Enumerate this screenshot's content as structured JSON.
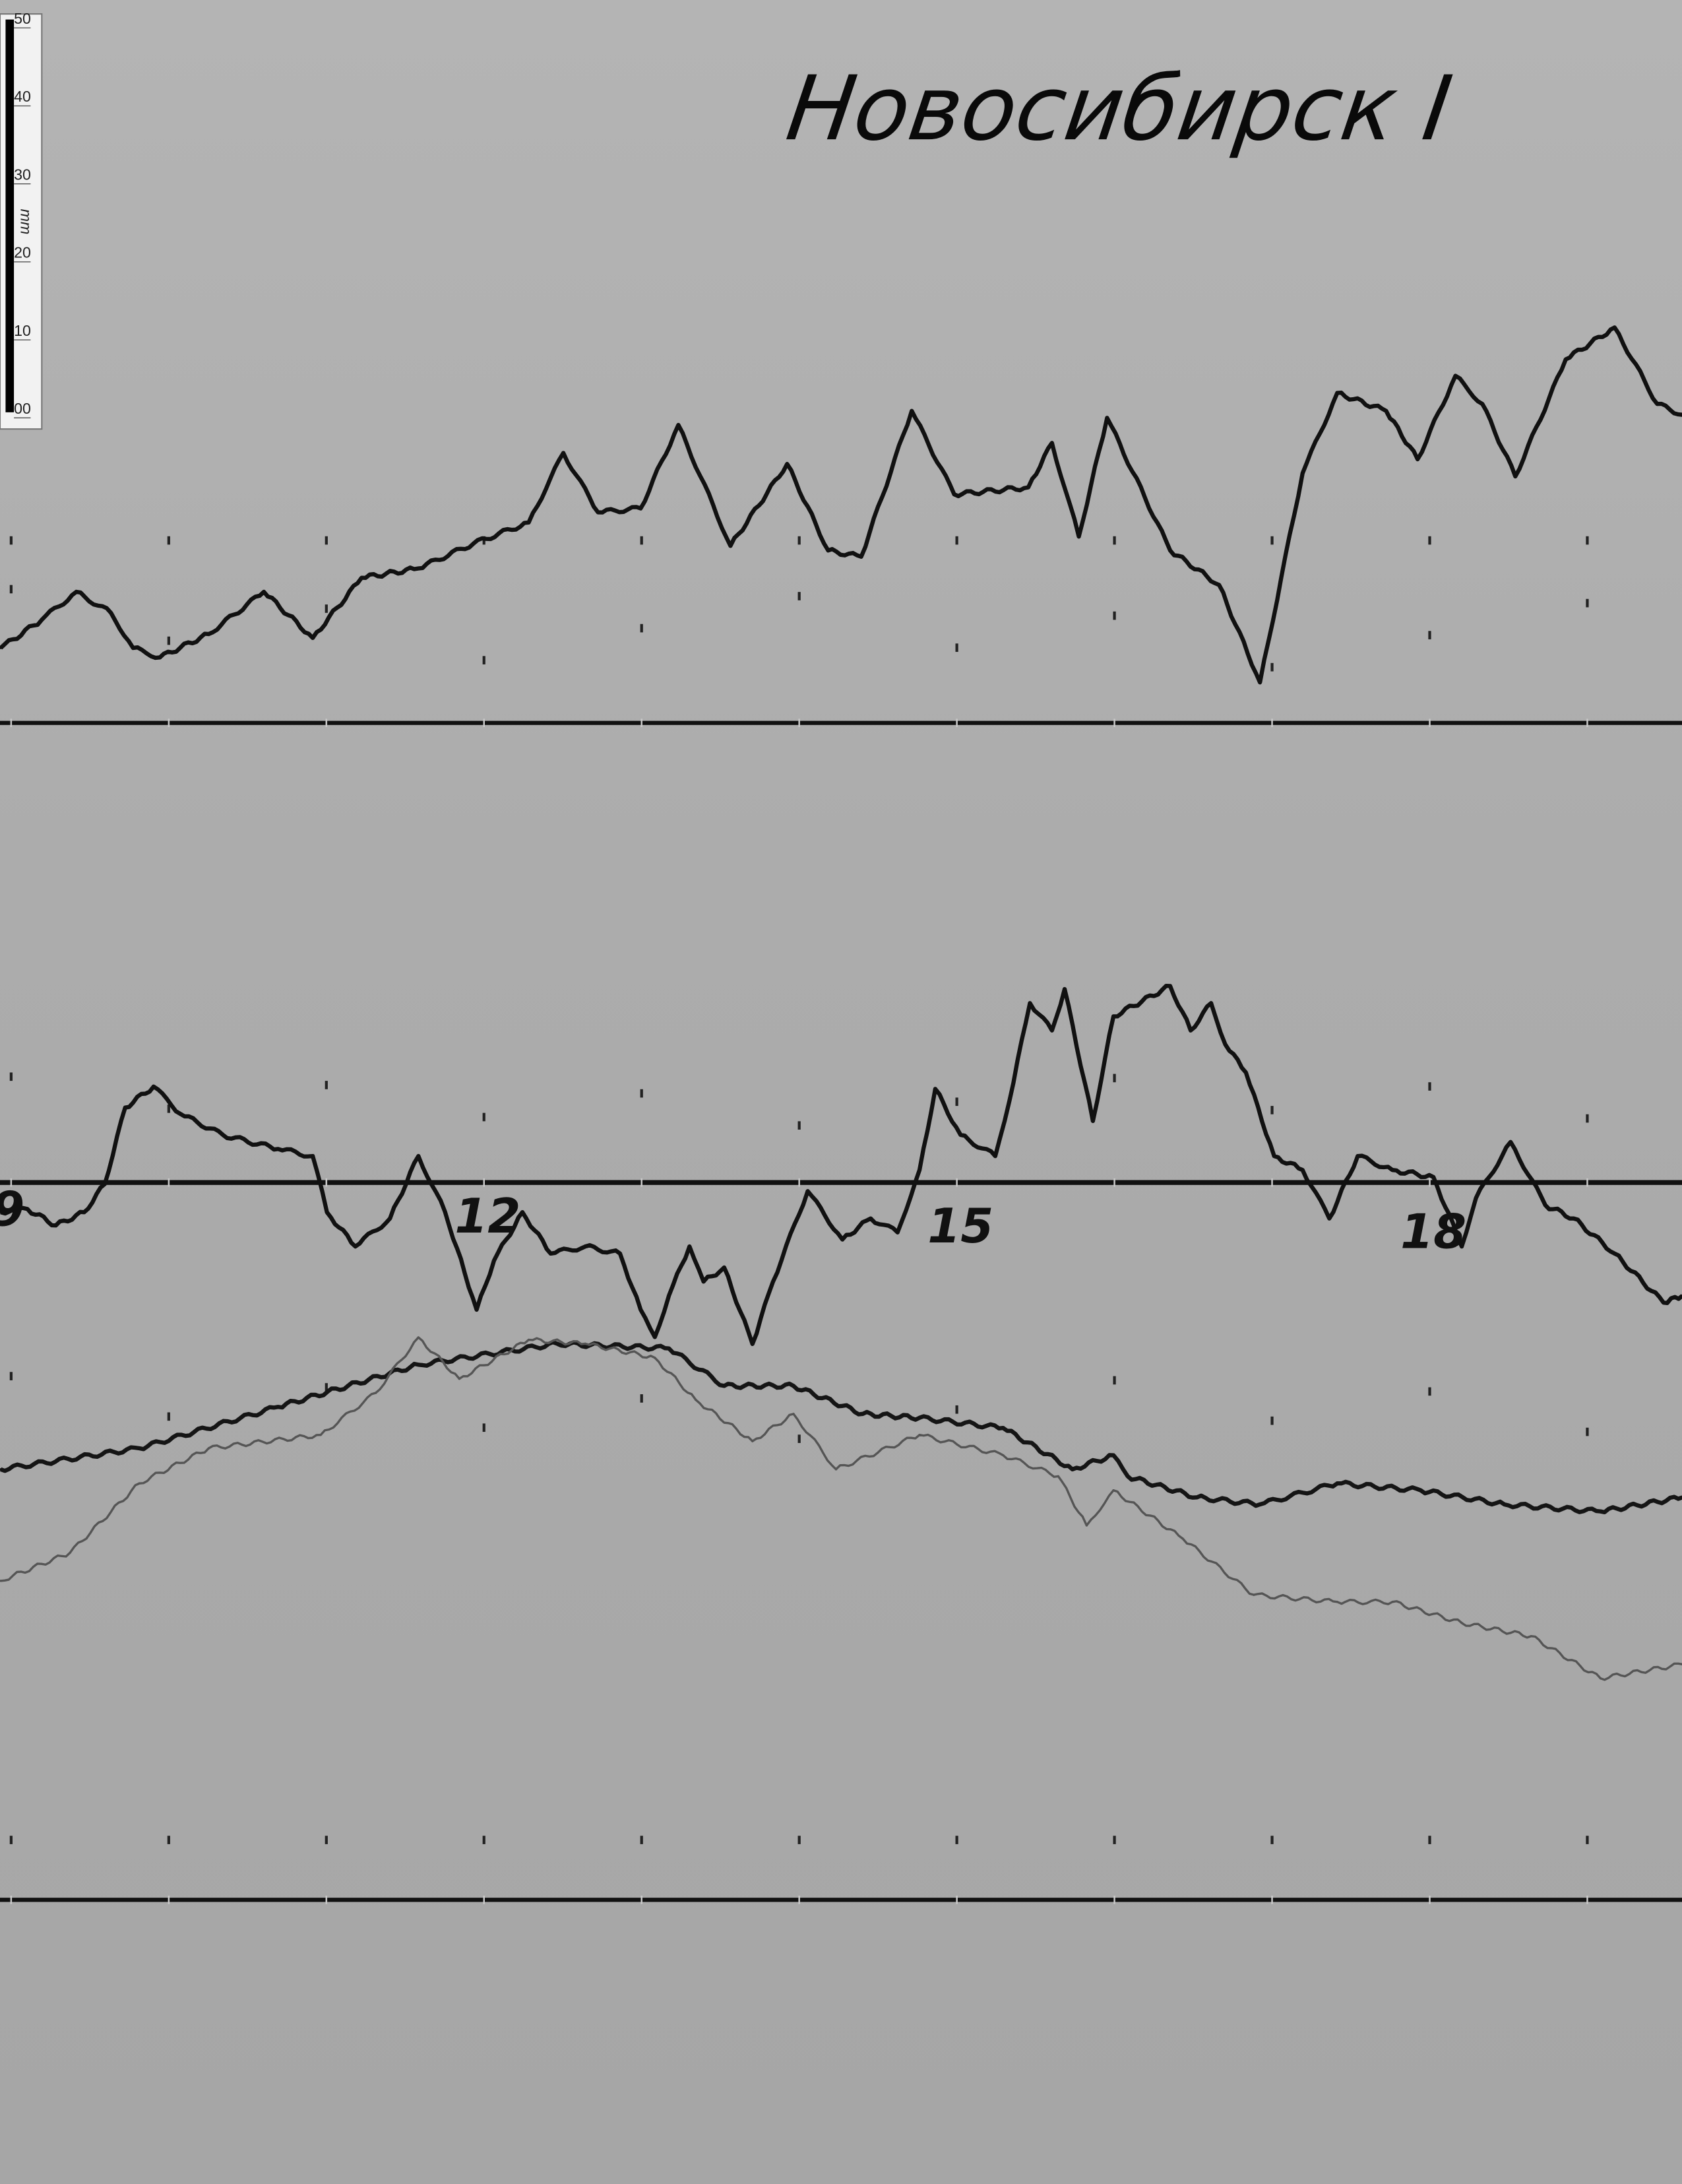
{
  "chart_data": {
    "type": "line",
    "title": "Новосибирск I",
    "x_unit": "hours",
    "xlim": [
      8.96,
      19.63
    ],
    "hour_labels": [
      "9",
      "12",
      "15",
      "18"
    ],
    "hour_label_values": [
      9,
      12,
      15,
      18
    ],
    "hour_marks": [
      9,
      10,
      11,
      12,
      13,
      14,
      15,
      16,
      17,
      18,
      19
    ],
    "scale_bar": {
      "labels": [
        "50",
        "40",
        "30",
        "20",
        "10",
        "00"
      ],
      "unit": "mm"
    },
    "grid": false,
    "series": [
      {
        "baseline": 1,
        "color": "#111111",
        "x": [
          8.96,
          9.22,
          9.44,
          9.66,
          9.8,
          9.97,
          10.28,
          10.63,
          10.94,
          11.25,
          11.61,
          11.96,
          12.31,
          12.53,
          12.75,
          13.02,
          13.26,
          13.59,
          13.95,
          14.21,
          14.42,
          14.74,
          15.01,
          15.48,
          15.63,
          15.8,
          15.98,
          16.38,
          16.69,
          16.95,
          17.22,
          17.44,
          17.75,
          17.95,
          18.19,
          18.36,
          18.57,
          18.89,
          19.2,
          19.47,
          19.63
        ],
        "y_mm": [
          9.6,
          13.2,
          16.8,
          14.1,
          9.6,
          8.4,
          11.4,
          16.8,
          10.9,
          18.6,
          19.8,
          23.0,
          25.7,
          34.6,
          27.0,
          27.5,
          38.2,
          22.7,
          33.2,
          22.1,
          21.3,
          40.0,
          29.3,
          30.2,
          35.9,
          23.9,
          39.1,
          22.1,
          17.7,
          5.2,
          32.0,
          42.3,
          40.0,
          33.8,
          44.5,
          40.9,
          31.6,
          46.6,
          50.7,
          40.9,
          39.5
        ]
      },
      {
        "baseline": 2,
        "color": "#111111",
        "x": [
          8.96,
          9.13,
          9.31,
          9.49,
          9.62,
          9.75,
          9.93,
          10.1,
          10.37,
          10.72,
          10.94,
          11.03,
          11.21,
          11.43,
          11.61,
          11.78,
          11.98,
          12.09,
          12.27,
          12.45,
          12.67,
          12.89,
          13.02,
          13.11,
          13.2,
          13.33,
          13.42,
          13.55,
          13.73,
          13.86,
          14.08,
          14.3,
          14.48,
          14.65,
          14.79,
          14.89,
          15.05,
          15.27,
          15.36,
          15.49,
          15.63,
          15.71,
          15.89,
          16.02,
          16.38,
          16.51,
          16.64,
          16.73,
          16.86,
          17.04,
          17.22,
          17.39,
          17.57,
          17.79,
          18.05,
          18.23,
          18.32,
          18.54,
          18.76,
          18.94,
          19.2,
          19.51,
          19.63
        ],
        "y_mm": [
          -3.8,
          -3.4,
          -5.5,
          -3.8,
          -0.2,
          9.6,
          12.3,
          8.8,
          6.1,
          4.3,
          3.4,
          -3.8,
          -8.2,
          -4.6,
          3.4,
          -3.8,
          -16.3,
          -10.0,
          -3.8,
          -9.1,
          -8.2,
          -9.1,
          -16.3,
          -19.8,
          -14.5,
          -8.2,
          -12.7,
          -10.9,
          -20.7,
          -12.7,
          -1.1,
          -7.3,
          -4.6,
          -6.4,
          1.6,
          12.0,
          6.1,
          3.4,
          10.5,
          23.0,
          19.5,
          24.8,
          7.9,
          21.3,
          25.2,
          19.5,
          23.0,
          17.7,
          14.1,
          3.4,
          1.6,
          -4.6,
          3.4,
          1.6,
          0.7,
          -8.2,
          -2.0,
          5.2,
          -2.9,
          -4.6,
          -9.1,
          -15.4,
          -14.5
        ]
      },
      {
        "baseline": 3,
        "color": "#151515",
        "x": [
          8.96,
          9.84,
          10.72,
          11.61,
          12.49,
          13.2,
          13.55,
          13.99,
          14.43,
          14.79,
          15.32,
          15.76,
          16.02,
          16.11,
          16.55,
          16.95,
          17.44,
          17.97,
          18.5,
          19.11,
          19.63
        ],
        "y_mm": [
          55.2,
          57.9,
          63.2,
          68.6,
          71.3,
          70.7,
          65.9,
          65.9,
          62.3,
          61.8,
          60.5,
          55.2,
          57.0,
          54.3,
          51.6,
          50.7,
          53.4,
          52.5,
          50.7,
          49.8,
          51.6
        ]
      },
      {
        "baseline": 3,
        "color": "#555555",
        "x": [
          8.96,
          9.4,
          9.84,
          10.28,
          10.99,
          11.34,
          11.61,
          11.87,
          12.31,
          12.67,
          13.11,
          13.37,
          13.73,
          13.99,
          14.26,
          14.79,
          15.32,
          15.67,
          15.85,
          16.02,
          16.46,
          16.91,
          17.44,
          17.79,
          18.23,
          18.67,
          19.11,
          19.63
        ],
        "y_mm": [
          40.9,
          44.5,
          53.4,
          57.9,
          59.6,
          65.0,
          72.1,
          66.8,
          71.8,
          71.3,
          69.5,
          64.1,
          58.8,
          62.3,
          55.2,
          59.6,
          57.0,
          54.3,
          48.0,
          52.5,
          46.3,
          39.1,
          38.2,
          38.2,
          35.5,
          33.8,
          28.4,
          30.2
        ]
      }
    ]
  }
}
